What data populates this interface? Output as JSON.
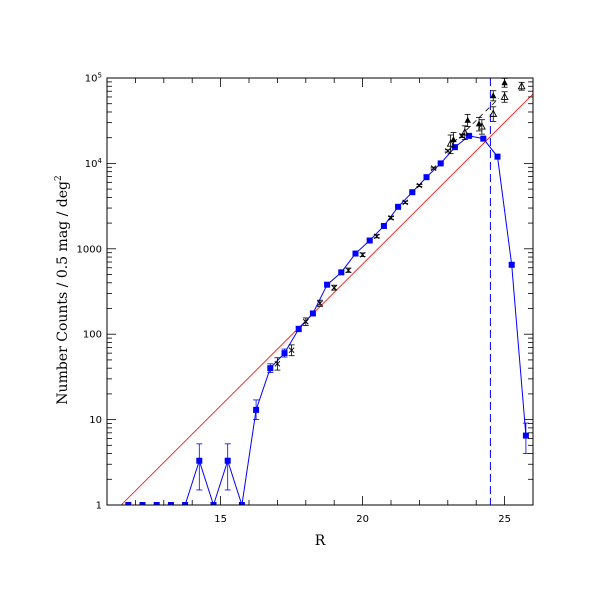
{
  "chart_data": {
    "type": "scatter",
    "xlabel": "R",
    "ylabel": "Number Counts / 0.5 mag / deg",
    "ylabel_superscript": "2",
    "xlim": [
      11,
      26
    ],
    "ylim": [
      1,
      100000
    ],
    "y_scale": "log",
    "x_ticks": [
      15,
      20,
      25
    ],
    "x_tick_labels": [
      "15",
      "20",
      "25"
    ],
    "y_ticks": [
      1,
      10,
      100,
      1000,
      10000,
      100000
    ],
    "y_tick_labels": [
      {
        "base": "1",
        "sup": ""
      },
      {
        "base": "10",
        "sup": ""
      },
      {
        "base": "100",
        "sup": ""
      },
      {
        "base": "1000",
        "sup": ""
      },
      {
        "base": "10",
        "sup": "4"
      },
      {
        "base": "10",
        "sup": "5"
      }
    ],
    "grid": false,
    "colors": {
      "blue_series": "#0000ff",
      "fit_line": "#ff0000",
      "black_series": "#000000",
      "limit_line": "#0000ff"
    },
    "series": [
      {
        "marker": "filled-square",
        "connected": true,
        "x": [
          11.75,
          12.25,
          12.75,
          13.25,
          13.75,
          14.25,
          14.75,
          15.25,
          15.75,
          16.25,
          16.75,
          17.25,
          17.75,
          18.25,
          18.75,
          19.25,
          19.75,
          20.25,
          20.75,
          21.25,
          21.75,
          22.25,
          22.75,
          23.25,
          23.75,
          24.25,
          24.75,
          25.25,
          25.75
        ],
        "y": [
          1,
          1,
          1,
          1,
          1,
          3.3,
          1,
          3.3,
          1,
          13,
          40,
          60,
          115,
          175,
          380,
          530,
          880,
          1250,
          1850,
          3100,
          4600,
          6900,
          10000,
          15500,
          21000,
          19500,
          12000,
          650,
          6.5
        ],
        "err_low": [
          0,
          0,
          0,
          0,
          0,
          1.8,
          0,
          1.8,
          0,
          3,
          4.5,
          6,
          8,
          10,
          15,
          20,
          30,
          40,
          50,
          70,
          90,
          110,
          150,
          200,
          250,
          250,
          200,
          30,
          2.5
        ],
        "err_high": [
          0,
          0,
          0,
          0,
          0,
          1.9,
          0,
          1.9,
          0,
          4,
          5,
          7,
          9,
          11,
          18,
          22,
          32,
          42,
          55,
          75,
          95,
          120,
          160,
          220,
          260,
          260,
          220,
          32,
          2.6
        ]
      },
      {
        "marker": "cross",
        "connected": false,
        "x": [
          17.0,
          17.5,
          18.0,
          18.5,
          19.0,
          19.5,
          20.0,
          20.5,
          21.0,
          21.5,
          22.0,
          22.5,
          23.0,
          23.5
        ],
        "y": [
          45,
          65,
          140,
          230,
          350,
          560,
          850,
          1400,
          2300,
          3500,
          5500,
          8800,
          14000,
          21000
        ],
        "err_low": [
          7,
          9,
          14,
          18,
          22,
          30,
          40,
          55,
          80,
          100,
          150,
          200,
          400,
          900
        ],
        "err_high": [
          8,
          10,
          15,
          20,
          25,
          35,
          45,
          60,
          90,
          110,
          160,
          220,
          450,
          1000
        ]
      },
      {
        "marker": "open-triangle",
        "connected": false,
        "x": [
          23.1,
          23.6,
          24.2,
          24.6,
          25.0,
          25.6
        ],
        "y": [
          17000,
          23000,
          27000,
          38000,
          60000,
          80000
        ],
        "err_low": [
          4000,
          4000,
          5000,
          7000,
          8000,
          8000
        ],
        "err_high": [
          4500,
          4500,
          5500,
          8000,
          9000,
          9000
        ]
      },
      {
        "marker": "filled-triangle",
        "connected": false,
        "x": [
          23.2,
          23.7,
          24.1,
          24.6,
          25.0
        ],
        "y": [
          19000,
          32000,
          29000,
          62000,
          88000
        ],
        "err_low": [
          3500,
          5000,
          5000,
          8000,
          10000
        ],
        "err_high": [
          4000,
          5500,
          5500,
          9000,
          11000
        ]
      }
    ],
    "black_dashed_segment": {
      "x": [
        23.2,
        24.8
      ],
      "y": [
        17500,
        58000
      ]
    },
    "fit_line": {
      "x": [
        11.5,
        26
      ],
      "y": [
        1,
        65000
      ]
    },
    "vertical_dashed_line": {
      "x": 24.5
    }
  }
}
